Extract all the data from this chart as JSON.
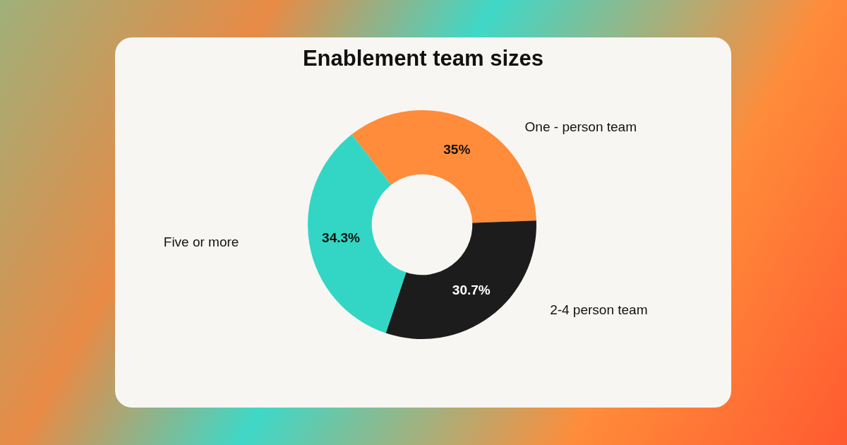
{
  "chart_data": {
    "type": "donut",
    "title": "Enablement team sizes",
    "categories": [
      "One - person team",
      "2-4 person team",
      "Five or more"
    ],
    "values": [
      35,
      30.7,
      34.3
    ],
    "colors": [
      "#ff8c3a",
      "#1c1c1c",
      "#33d6c4"
    ],
    "value_labels": [
      "35%",
      "30.7%",
      "34.3%"
    ]
  }
}
